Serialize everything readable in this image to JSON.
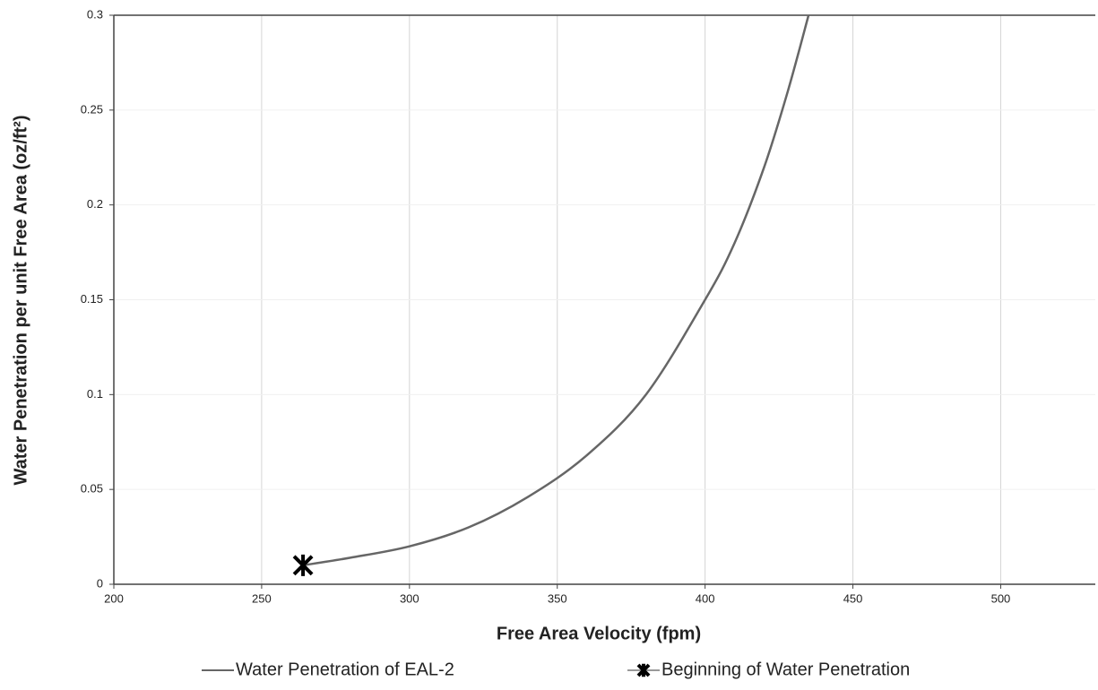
{
  "chart_data": {
    "type": "line",
    "xlabel": "Free Area Velocity (fpm)",
    "ylabel": "Water Penetration per unit Free Area (oz/ft²)",
    "xlim": [
      200,
      532
    ],
    "xticks": [
      200,
      250,
      300,
      350,
      400,
      450,
      500
    ],
    "ylim": [
      0,
      0.3
    ],
    "yticks": [
      0,
      0.05,
      0.1,
      0.15,
      0.2,
      0.25,
      0.3
    ],
    "grid": true,
    "legend": "bottom",
    "series": [
      {
        "name": "Water Penetration of EAL-2",
        "color": "#666666",
        "marker": "none",
        "x": [
          264,
          280,
          300,
          320,
          340,
          360,
          380,
          400,
          410,
          420,
          428,
          435
        ],
        "values": [
          0.01,
          0.014,
          0.02,
          0.03,
          0.046,
          0.068,
          0.1,
          0.15,
          0.18,
          0.22,
          0.26,
          0.3
        ]
      },
      {
        "name": "Beginning of Water Penetration",
        "color": "#000000",
        "marker": "star",
        "x": [
          264
        ],
        "values": [
          0.01
        ]
      }
    ]
  }
}
